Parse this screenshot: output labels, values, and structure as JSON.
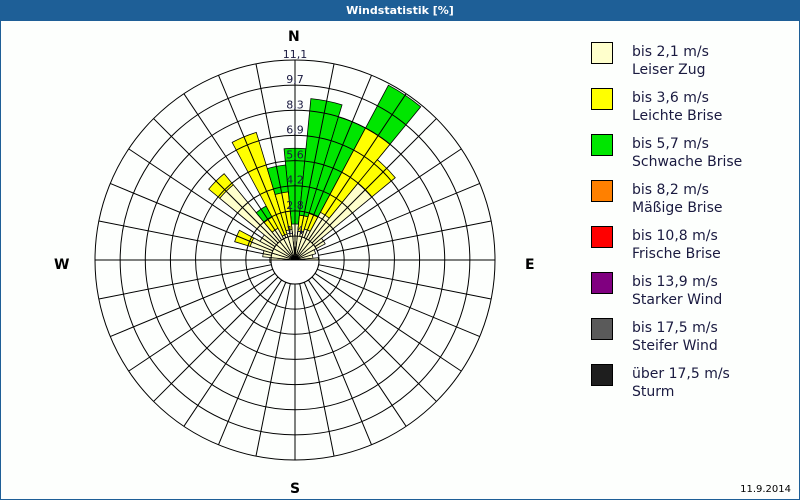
{
  "window": {
    "title": "Windstatistik [%]",
    "date": "11.9.2014"
  },
  "compass": {
    "n": "N",
    "e": "E",
    "s": "S",
    "w": "W"
  },
  "legend": [
    {
      "range": "bis 2,1 m/s",
      "name": "Leiser Zug",
      "color": "#ffffcc"
    },
    {
      "range": "bis 3,6 m/s",
      "name": "Leichte Brise",
      "color": "#ffff00"
    },
    {
      "range": "bis 5,7 m/s",
      "name": "Schwache Brise",
      "color": "#00e600"
    },
    {
      "range": "bis 8,2 m/s",
      "name": "Mäßige Brise",
      "color": "#ff8000"
    },
    {
      "range": "bis 10,8 m/s",
      "name": "Frische Brise",
      "color": "#ff0000"
    },
    {
      "range": "bis 13,9 m/s",
      "name": "Starker Wind",
      "color": "#800080"
    },
    {
      "range": "bis 17,5 m/s",
      "name": "Steifer Wind",
      "color": "#5a5a5a"
    },
    {
      "range": "über 17,5 m/s",
      "name": "Sturm",
      "color": "#1e1e1e"
    }
  ],
  "chart_data": {
    "type": "wind-rose",
    "title": "Windstatistik [%]",
    "unit": "%",
    "sectors": 32,
    "sector_width_deg": 11.25,
    "ring_labels": [
      "1,4",
      "2,8",
      "4,2",
      "5,6",
      "6,9",
      "8,3",
      "9,7",
      "11,1"
    ],
    "rmax": 11.1,
    "calm_radius_fraction": 0.12,
    "series_names": [
      "Leiser Zug (bis 2,1 m/s)",
      "Leichte Brise (bis 3,6 m/s)",
      "Schwache Brise (bis 5,7 m/s)"
    ],
    "series_colors": [
      "#ffffcc",
      "#ffff00",
      "#00e600"
    ],
    "directions_deg": [
      0,
      11.25,
      22.5,
      33.75,
      45,
      56.25,
      67.5,
      78.75,
      90,
      270,
      281.25,
      292.5,
      303.75,
      315,
      326.25,
      337.5,
      348.75
    ],
    "values": [
      [
        2.0,
        0.0,
        4.2
      ],
      [
        1.6,
        0.9,
        6.5
      ],
      [
        1.8,
        0.9,
        5.6
      ],
      [
        3.0,
        5.3,
        2.7
      ],
      [
        5.5,
        1.7,
        0.0
      ],
      [
        1.9,
        0.0,
        0.0
      ],
      [
        1.2,
        0.0,
        0.0
      ],
      [
        1.0,
        0.0,
        0.0
      ],
      [
        1.3,
        0.0,
        0.0
      ],
      [
        1.4,
        0.0,
        0.0
      ],
      [
        1.8,
        0.0,
        0.0
      ],
      [
        2.6,
        0.9,
        0.0
      ],
      [
        2.2,
        0.0,
        0.0
      ],
      [
        5.4,
        0.8,
        0.0
      ],
      [
        2.0,
        0.7,
        0.7
      ],
      [
        1.5,
        5.9,
        0.0
      ],
      [
        1.7,
        2.1,
        1.5
      ]
    ],
    "compass_labels": [
      "N",
      "E",
      "S",
      "W"
    ]
  }
}
